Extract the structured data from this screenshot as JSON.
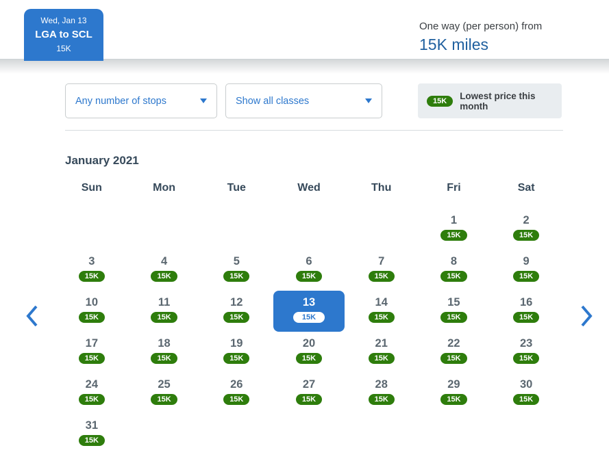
{
  "header": {
    "trip_card": {
      "date": "Wed, Jan 13",
      "route": "LGA to SCL",
      "price": "15K"
    },
    "price_summary": {
      "label": "One way (per person) from",
      "value": "15K miles"
    }
  },
  "filters": {
    "stops_value": "Any number of stops",
    "classes_value": "Show all classes"
  },
  "legend": {
    "badge": "15K",
    "label": "Lowest price this month"
  },
  "calendar": {
    "title": "January 2021",
    "weekdays": [
      "Sun",
      "Mon",
      "Tue",
      "Wed",
      "Thu",
      "Fri",
      "Sat"
    ],
    "selected_day": 13,
    "price_label": "15K",
    "weeks": [
      [
        null,
        null,
        null,
        null,
        null,
        1,
        2
      ],
      [
        3,
        4,
        5,
        6,
        7,
        8,
        9
      ],
      [
        10,
        11,
        12,
        13,
        14,
        15,
        16
      ],
      [
        17,
        18,
        19,
        20,
        21,
        22,
        23
      ],
      [
        24,
        25,
        26,
        27,
        28,
        29,
        30
      ],
      [
        31,
        null,
        null,
        null,
        null,
        null,
        null
      ]
    ]
  },
  "colors": {
    "accent_blue": "#2d78cd",
    "dark_blue": "#20609f",
    "price_green": "#2e7d0c",
    "heading_navy": "#36495a"
  }
}
